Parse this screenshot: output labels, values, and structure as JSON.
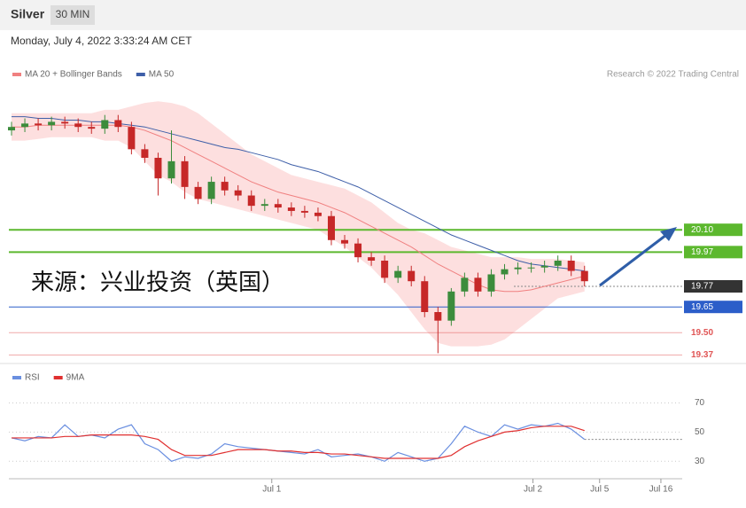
{
  "header": {
    "instrument": "Silver",
    "interval": "30 MIN",
    "timestamp": "Monday, July 4, 2022 3:33:24 AM CET"
  },
  "credit": "Research © 2022 Trading Central",
  "watermark": "来源：兴业投资（英国）",
  "chart_data": [
    {
      "type": "candlestick",
      "up_color": "#3c8c3c",
      "down_color": "#c62828",
      "xlim": [
        -0.2,
        50.33
      ],
      "ylim": [
        19.32,
        20.82
      ],
      "open": [
        20.68,
        20.7,
        20.72,
        20.71,
        20.73,
        20.72,
        20.7,
        20.69,
        20.74,
        20.7,
        20.57,
        20.52,
        20.4,
        20.5,
        20.35,
        20.28,
        20.38,
        20.33,
        20.3,
        20.24,
        20.25,
        20.23,
        20.21,
        20.2,
        20.18,
        20.04,
        20.02,
        19.94,
        19.92,
        19.82,
        19.86,
        19.8,
        19.62,
        19.57,
        19.74,
        19.82,
        19.74,
        19.84,
        19.87,
        19.88,
        19.88,
        19.89,
        19.92,
        19.86
      ],
      "high": [
        20.73,
        20.75,
        20.75,
        20.76,
        20.76,
        20.75,
        20.73,
        20.77,
        20.77,
        20.73,
        20.6,
        20.55,
        20.68,
        20.53,
        20.38,
        20.41,
        20.41,
        20.36,
        20.33,
        20.28,
        20.28,
        20.26,
        20.24,
        20.23,
        20.21,
        20.07,
        20.05,
        19.97,
        19.95,
        19.89,
        19.89,
        19.83,
        19.65,
        19.76,
        19.85,
        19.85,
        19.87,
        19.9,
        19.91,
        19.91,
        19.92,
        19.95,
        19.95,
        19.89
      ],
      "low": [
        20.65,
        20.67,
        20.68,
        20.68,
        20.69,
        20.67,
        20.66,
        20.66,
        20.67,
        20.54,
        20.49,
        20.3,
        20.37,
        20.28,
        20.25,
        20.25,
        20.3,
        20.27,
        20.21,
        20.21,
        20.2,
        20.18,
        20.17,
        20.15,
        20.01,
        19.99,
        19.91,
        19.89,
        19.79,
        19.79,
        19.77,
        19.59,
        19.38,
        19.54,
        19.71,
        19.71,
        19.71,
        19.81,
        19.84,
        19.85,
        19.85,
        19.86,
        19.83,
        19.77
      ],
      "close": [
        20.7,
        20.72,
        20.71,
        20.73,
        20.72,
        20.7,
        20.69,
        20.74,
        20.7,
        20.57,
        20.52,
        20.4,
        20.5,
        20.35,
        20.28,
        20.38,
        20.33,
        20.3,
        20.24,
        20.25,
        20.23,
        20.21,
        20.2,
        20.18,
        20.04,
        20.02,
        19.94,
        19.92,
        19.82,
        19.86,
        19.8,
        19.62,
        19.57,
        19.74,
        19.82,
        19.74,
        19.84,
        19.87,
        19.88,
        19.88,
        19.89,
        19.92,
        19.86,
        19.8
      ],
      "bands": {
        "color": "#fdd9d9",
        "upper": [
          20.78,
          20.78,
          20.78,
          20.78,
          20.78,
          20.78,
          20.78,
          20.8,
          20.8,
          20.82,
          20.84,
          20.85,
          20.84,
          20.82,
          20.78,
          20.72,
          20.66,
          20.6,
          20.54,
          20.5,
          20.46,
          20.42,
          20.4,
          20.38,
          20.36,
          20.34,
          20.3,
          20.26,
          20.2,
          20.14,
          20.1,
          20.08,
          20.04,
          20.0,
          19.98,
          19.96,
          19.94,
          19.94,
          19.94,
          19.93,
          19.93,
          19.93,
          19.92,
          19.91
        ],
        "lower": [
          20.62,
          20.62,
          20.63,
          20.64,
          20.64,
          20.64,
          20.64,
          20.62,
          20.62,
          20.58,
          20.5,
          20.42,
          20.38,
          20.32,
          20.28,
          20.26,
          20.24,
          20.22,
          20.2,
          20.18,
          20.16,
          20.14,
          20.12,
          20.1,
          20.05,
          20.0,
          19.94,
          19.88,
          19.8,
          19.72,
          19.62,
          19.52,
          19.44,
          19.42,
          19.42,
          19.42,
          19.43,
          19.46,
          19.52,
          19.58,
          19.64,
          19.7,
          19.72,
          19.74
        ]
      },
      "series": [
        {
          "name": "MA 20 + Bollinger Bands",
          "color": "#f08080",
          "values": [
            20.7,
            20.7,
            20.71,
            20.71,
            20.71,
            20.71,
            20.71,
            20.71,
            20.71,
            20.7,
            20.68,
            20.65,
            20.62,
            20.58,
            20.54,
            20.5,
            20.46,
            20.42,
            20.38,
            20.35,
            20.32,
            20.3,
            20.28,
            20.26,
            20.23,
            20.2,
            20.16,
            20.12,
            20.08,
            20.04,
            20.0,
            19.95,
            19.9,
            19.86,
            19.82,
            19.78,
            19.75,
            19.74,
            19.74,
            19.75,
            19.77,
            19.79,
            19.81,
            19.83
          ]
        },
        {
          "name": "MA 50",
          "color": "#3e5fa8",
          "values": [
            20.76,
            20.76,
            20.75,
            20.75,
            20.74,
            20.74,
            20.73,
            20.73,
            20.72,
            20.71,
            20.7,
            20.68,
            20.66,
            20.64,
            20.62,
            20.6,
            20.58,
            20.57,
            20.55,
            20.53,
            20.51,
            20.48,
            20.46,
            20.44,
            20.41,
            20.38,
            20.35,
            20.31,
            20.27,
            20.23,
            20.19,
            20.15,
            20.11,
            20.07,
            20.04,
            20.01,
            19.98,
            19.95,
            19.92,
            19.9,
            19.89,
            19.88,
            19.87,
            19.86
          ]
        }
      ],
      "levels": [
        {
          "value": 20.1,
          "label": "20.10",
          "color": "#5cb82e",
          "style": "filled",
          "line": "solid"
        },
        {
          "value": 19.97,
          "label": "19.97",
          "color": "#5cb82e",
          "style": "filled",
          "line": "solid"
        },
        {
          "value": 19.77,
          "label": "19.77",
          "color": "#333333",
          "style": "filled",
          "line": "dotted"
        },
        {
          "value": 19.65,
          "label": "19.65",
          "color": "#2c5ec9",
          "style": "filled",
          "line": "thin"
        },
        {
          "value": 19.5,
          "label": "19.50",
          "color": "#e05555",
          "style": "text",
          "line": "thin"
        },
        {
          "value": 19.37,
          "label": "19.37",
          "color": "#e05555",
          "style": "text",
          "line": "thin"
        }
      ]
    },
    {
      "type": "line",
      "grid": true,
      "xlim": [
        -0.2,
        50.33
      ],
      "ylim": [
        18,
        94
      ],
      "yticks": [
        30,
        50,
        70
      ],
      "xticks": [
        {
          "value": 19.53,
          "label": "Jul 1"
        },
        {
          "value": 39.13,
          "label": "Jul 2"
        },
        {
          "value": 44.13,
          "label": "Jul 5"
        },
        {
          "value": 48.73,
          "label": "Jul 16"
        }
      ],
      "series": [
        {
          "name": "RSI",
          "color": "#6a8fe0",
          "values": [
            46,
            44,
            47,
            46,
            55,
            47,
            48,
            46,
            52,
            55,
            42,
            38,
            30,
            33,
            32,
            35,
            42,
            40,
            39,
            38,
            37,
            36,
            35,
            38,
            33,
            34,
            35,
            33,
            30,
            36,
            33,
            30,
            32,
            42,
            54,
            50,
            47,
            55,
            52,
            55,
            54,
            56,
            52,
            45
          ]
        },
        {
          "name": "9MA",
          "color": "#e03030",
          "values": [
            46,
            46,
            46,
            46,
            47,
            47,
            48,
            48,
            48,
            48,
            47,
            45,
            38,
            34,
            34,
            34,
            36,
            38,
            38,
            38,
            37,
            37,
            36,
            36,
            35,
            35,
            34,
            33,
            32,
            32,
            32,
            32,
            32,
            34,
            40,
            44,
            47,
            50,
            51,
            53,
            54,
            54,
            54,
            51
          ]
        }
      ]
    }
  ]
}
